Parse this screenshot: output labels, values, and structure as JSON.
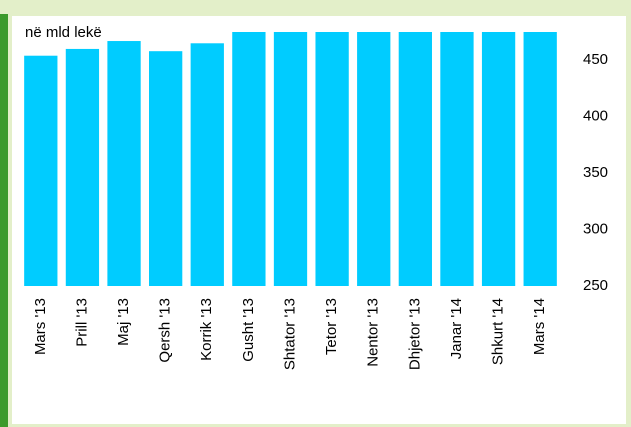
{
  "chart_data": {
    "type": "bar",
    "subtitle": "në mld lekë",
    "categories": [
      "Mars '13",
      "Prill '13",
      "Maj '13",
      "Qersh '13",
      "Korrik '13",
      "Gusht '13",
      "Shtator '13",
      "Tetor '13",
      "Nentor '13",
      "Dhjetor '13",
      "Janar '14",
      "Shkurt '14",
      "Mars '14"
    ],
    "values": [
      454,
      460,
      467,
      458,
      465,
      475,
      475,
      475,
      475,
      475,
      475,
      475,
      475
    ],
    "color": "#00ccff",
    "ylim": [
      250,
      475
    ],
    "yticks": [
      250,
      300,
      350,
      400,
      450
    ],
    "y_axis_side": "right",
    "grid": false
  }
}
